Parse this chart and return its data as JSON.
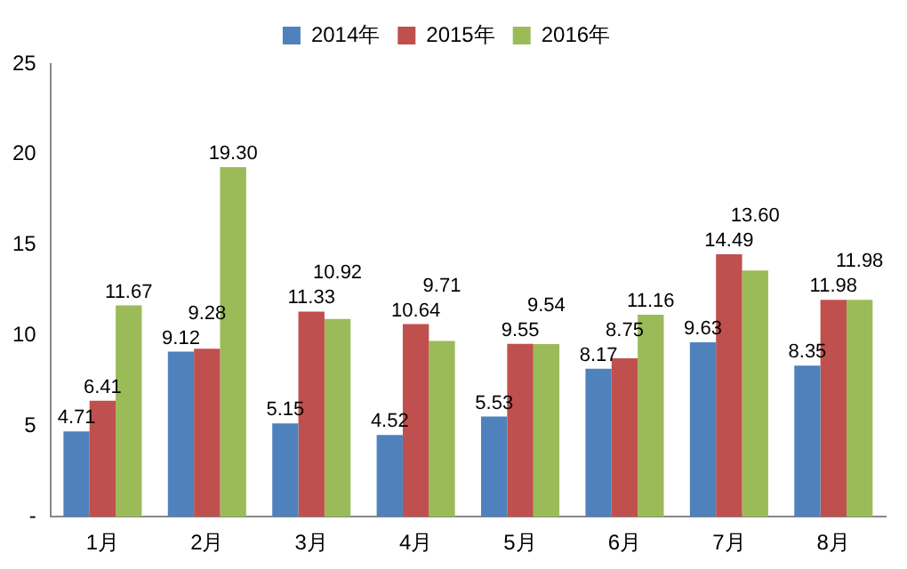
{
  "chart_data": {
    "type": "bar",
    "categories": [
      "1月",
      "2月",
      "3月",
      "4月",
      "5月",
      "6月",
      "7月",
      "8月"
    ],
    "series": [
      {
        "name": "2014年",
        "color": "#4f81bd",
        "values": [
          4.71,
          9.12,
          5.15,
          4.52,
          5.53,
          8.17,
          9.63,
          8.35
        ],
        "value_labels": [
          "4.71",
          "9.12",
          "5.15",
          "4.52",
          "5.53",
          "8.17",
          "9.63",
          "8.35"
        ]
      },
      {
        "name": "2015年",
        "color": "#c0504d",
        "values": [
          6.41,
          9.28,
          11.33,
          10.64,
          9.55,
          8.75,
          14.49,
          11.98
        ],
        "value_labels": [
          "6.41",
          "9.28",
          "11.33",
          "10.64",
          "9.55",
          "8.75",
          "14.49",
          "11.98"
        ]
      },
      {
        "name": "2016年",
        "color": "#9bbb59",
        "values": [
          11.67,
          19.3,
          10.92,
          9.71,
          9.54,
          11.16,
          13.6,
          11.98
        ],
        "value_labels": [
          "11.67",
          "19.30",
          "10.92",
          "9.71",
          "9.54",
          "11.16",
          "13.60",
          "11.98"
        ]
      }
    ],
    "ylim": [
      0,
      25
    ],
    "yticks": [
      {
        "value": 0,
        "label": "-"
      },
      5,
      10,
      15,
      20,
      25
    ],
    "grid": false,
    "legend": "top"
  }
}
